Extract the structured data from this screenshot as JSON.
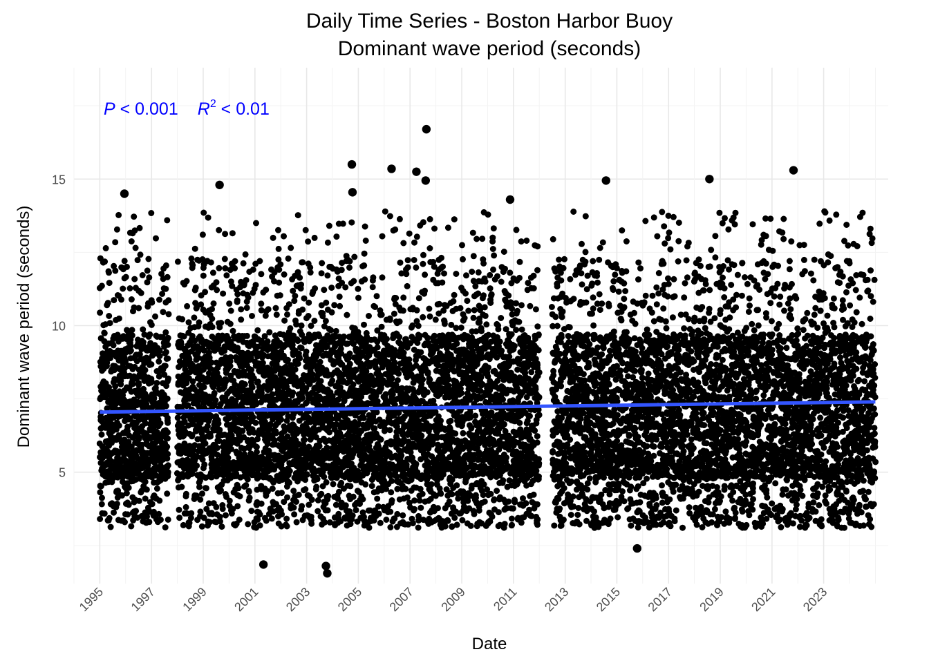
{
  "chart_data": {
    "type": "scatter",
    "title": "Daily Time Series - Boston Harbor Buoy",
    "subtitle": "Dominant wave period (seconds)",
    "xlabel": "Date",
    "ylabel": "Dominant wave period (seconds)",
    "x_tick_labels": [
      "1995",
      "1997",
      "1999",
      "2001",
      "2003",
      "2005",
      "2007",
      "2009",
      "2011",
      "2013",
      "2015",
      "2017",
      "2019",
      "2021",
      "2023"
    ],
    "y_tick_labels": [
      "5",
      "10",
      "15"
    ],
    "y_ticks": [
      5,
      10,
      15
    ],
    "xlim": [
      "1994-01-01",
      "2025-07-01"
    ],
    "ylim": [
      1.2,
      18.8
    ],
    "grid": true,
    "data_gaps": [
      [
        "1997-09-01",
        "1997-12-31"
      ],
      [
        "2012-01-01",
        "2012-06-30"
      ]
    ],
    "point_color": "#000000",
    "trend": {
      "color": "#3355ff",
      "start": {
        "x": "1995-01-01",
        "y": 7.05
      },
      "end": {
        "x": "2024-12-31",
        "y": 7.4
      }
    },
    "annotation": {
      "color": "#0000ff",
      "p_symbol": "P",
      "p_text": " < 0.001",
      "r_symbol": "R",
      "r_sup": "2",
      "r_text": " < 0.01"
    },
    "highlight_points": [
      {
        "x": "1995-12-15",
        "y": 14.5
      },
      {
        "x": "1999-08-20",
        "y": 14.8
      },
      {
        "x": "2001-05-01",
        "y": 1.85
      },
      {
        "x": "2003-10-20",
        "y": 1.55
      },
      {
        "x": "2003-10-01",
        "y": 1.8
      },
      {
        "x": "2004-10-01",
        "y": 15.5
      },
      {
        "x": "2004-10-10",
        "y": 14.55
      },
      {
        "x": "2006-04-15",
        "y": 15.35
      },
      {
        "x": "2007-04-01",
        "y": 15.25
      },
      {
        "x": "2007-08-20",
        "y": 16.7
      },
      {
        "x": "2007-08-10",
        "y": 14.95
      },
      {
        "x": "2010-11-15",
        "y": 14.3
      },
      {
        "x": "2014-08-01",
        "y": 14.95
      },
      {
        "x": "2018-08-01",
        "y": 15.0
      },
      {
        "x": "2021-11-01",
        "y": 15.3
      },
      {
        "x": "2015-10-15",
        "y": 2.4
      }
    ]
  }
}
